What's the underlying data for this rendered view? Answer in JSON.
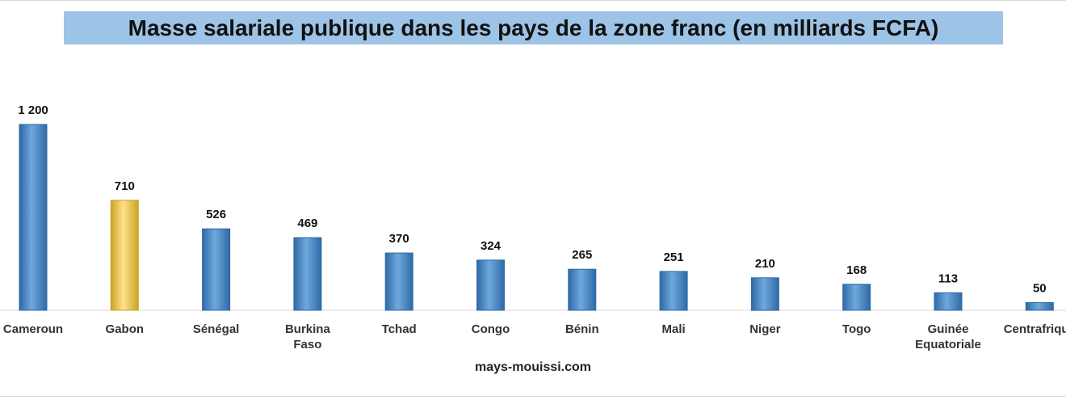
{
  "chart_data": {
    "type": "bar",
    "title": "Masse salariale publique dans les pays de la zone franc (en milliards  FCFA)",
    "source": "mays-mouissi.com",
    "categories": [
      "Cameroun",
      "Gabon",
      "Sénégal",
      "Burkina Faso",
      "Tchad",
      "Congo",
      "Bénin",
      "Mali",
      "Niger",
      "Togo",
      "Guinée Equatoriale",
      "Centrafrique"
    ],
    "category_lines": [
      [
        "Cameroun"
      ],
      [
        "Gabon"
      ],
      [
        "Sénégal"
      ],
      [
        "Burkina",
        "Faso"
      ],
      [
        "Tchad"
      ],
      [
        "Congo"
      ],
      [
        "Bénin"
      ],
      [
        "Mali"
      ],
      [
        "Niger"
      ],
      [
        "Togo"
      ],
      [
        "Guinée",
        "Equatoriale"
      ],
      [
        "Centrafrique"
      ]
    ],
    "values": [
      1200,
      710,
      526,
      469,
      370,
      324,
      265,
      251,
      210,
      168,
      113,
      50
    ],
    "value_labels": [
      "1 200",
      "710",
      "526",
      "469",
      "370",
      "324",
      "265",
      "251",
      "210",
      "168",
      "113",
      "50"
    ],
    "highlight_index": 1,
    "colors": {
      "bar": "#5b9bd5",
      "bar_dark": "#2e6aa6",
      "highlight": "#ffd966",
      "highlight_dark": "#c9a227",
      "title_bg": "#9dc3e6"
    },
    "ylim": [
      0,
      1200
    ],
    "grid": false,
    "legend": "none"
  }
}
